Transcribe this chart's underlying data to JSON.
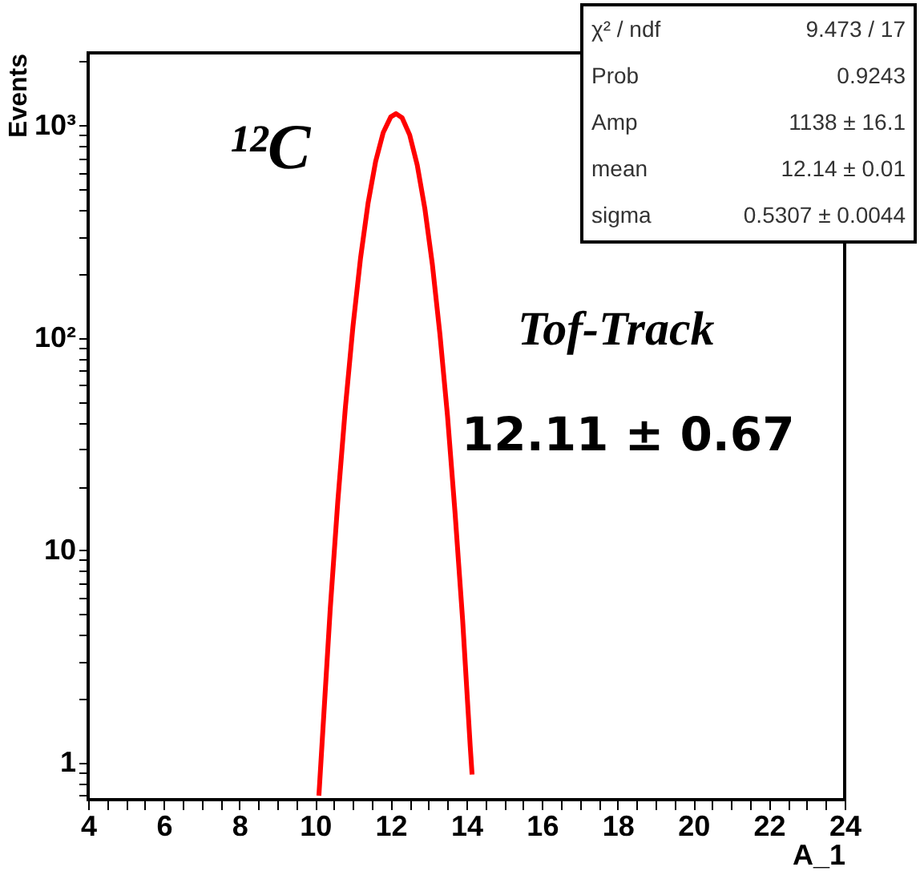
{
  "chart_data": {
    "type": "line",
    "xlabel": "A_1",
    "ylabel": "Events",
    "log": "y",
    "grid": false,
    "marker": "none",
    "line_style": "solid",
    "xlim": [
      4,
      24
    ],
    "ylim": [
      0.67,
      2200
    ],
    "xticks": [
      4,
      {
        "value": 4.5,
        "label": null
      },
      {
        "value": 5,
        "label": null
      },
      {
        "value": 5.5,
        "label": null
      },
      6,
      {
        "value": 6.5,
        "label": null
      },
      {
        "value": 7,
        "label": null
      },
      {
        "value": 7.5,
        "label": null
      },
      8,
      {
        "value": 8.5,
        "label": null
      },
      {
        "value": 9,
        "label": null
      },
      {
        "value": 9.5,
        "label": null
      },
      10,
      {
        "value": 10.5,
        "label": null
      },
      {
        "value": 11,
        "label": null
      },
      {
        "value": 11.5,
        "label": null
      },
      12,
      {
        "value": 12.5,
        "label": null
      },
      {
        "value": 13,
        "label": null
      },
      {
        "value": 13.5,
        "label": null
      },
      14,
      {
        "value": 14.5,
        "label": null
      },
      {
        "value": 15,
        "label": null
      },
      {
        "value": 15.5,
        "label": null
      },
      16,
      {
        "value": 16.5,
        "label": null
      },
      {
        "value": 17,
        "label": null
      },
      {
        "value": 17.5,
        "label": null
      },
      18,
      {
        "value": 18.5,
        "label": null
      },
      {
        "value": 19,
        "label": null
      },
      {
        "value": 19.5,
        "label": null
      },
      20,
      {
        "value": 20.5,
        "label": null
      },
      {
        "value": 21,
        "label": null
      },
      {
        "value": 21.5,
        "label": null
      },
      22,
      {
        "value": 22.5,
        "label": null
      },
      {
        "value": 23,
        "label": null
      },
      {
        "value": 23.5,
        "label": null
      },
      24
    ],
    "yticks": [
      {
        "value": 0.7,
        "label": null
      },
      {
        "value": 0.8,
        "label": null
      },
      {
        "value": 0.9,
        "label": null
      },
      1,
      {
        "value": 2,
        "label": null
      },
      {
        "value": 3,
        "label": null
      },
      {
        "value": 4,
        "label": null
      },
      {
        "value": 5,
        "label": null
      },
      {
        "value": 6,
        "label": null
      },
      {
        "value": 7,
        "label": null
      },
      {
        "value": 8,
        "label": null
      },
      {
        "value": 9,
        "label": null
      },
      10,
      {
        "value": 20,
        "label": null
      },
      {
        "value": 30,
        "label": null
      },
      {
        "value": 40,
        "label": null
      },
      {
        "value": 50,
        "label": null
      },
      {
        "value": 60,
        "label": null
      },
      {
        "value": 70,
        "label": null
      },
      {
        "value": 80,
        "label": null
      },
      {
        "value": 90,
        "label": null
      },
      {
        "value": 100,
        "label": "10²"
      },
      {
        "value": 200,
        "label": null
      },
      {
        "value": 300,
        "label": null
      },
      {
        "value": 400,
        "label": null
      },
      {
        "value": 500,
        "label": null
      },
      {
        "value": 600,
        "label": null
      },
      {
        "value": 700,
        "label": null
      },
      {
        "value": 800,
        "label": null
      },
      {
        "value": 900,
        "label": null
      },
      {
        "value": 1000,
        "label": "10³"
      },
      {
        "value": 2000,
        "label": null
      }
    ],
    "series": [
      {
        "color": "#ff0000",
        "x": [
          10.1,
          10.4,
          10.6,
          10.8,
          11.0,
          11.2,
          11.4,
          11.6,
          11.8,
          12.0,
          12.14,
          12.3,
          12.5,
          12.7,
          12.9,
          13.1,
          13.3,
          13.5,
          13.7,
          13.9,
          14.1,
          14.15
        ],
        "values": [
          0.7,
          5.3,
          17,
          47,
          113,
          237,
          431,
          678,
          927,
          1099,
          1138,
          1088,
          904,
          652,
          408,
          222,
          104,
          43,
          15,
          4.7,
          1.2,
          0.88
        ]
      }
    ],
    "annotations": [
      "¹²C",
      "Tof-Track",
      "12.11 ± 0.67",
      "χ² / ndf",
      "9.473 / 17",
      "Prob",
      "0.9243",
      "Amp",
      "1138 ± 16.1",
      "mean",
      "12.14 ± 0.01",
      "sigma",
      "0.5307 ± 0.0044"
    ]
  }
}
